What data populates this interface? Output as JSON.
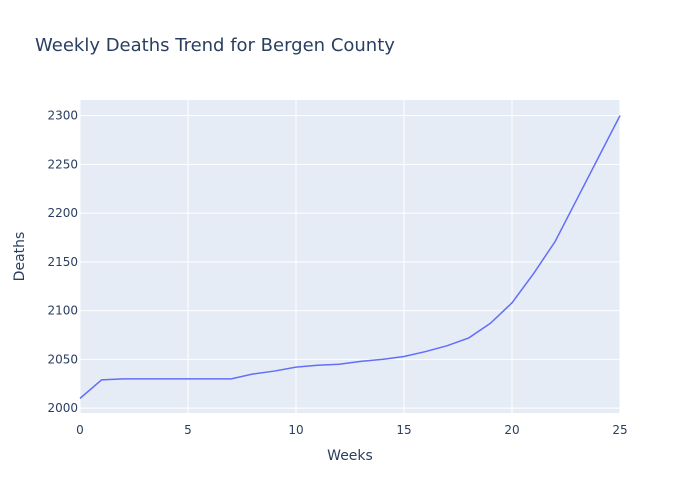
{
  "chart_data": {
    "type": "line",
    "title": "Weekly Deaths Trend for Bergen County",
    "xlabel": "Weeks",
    "ylabel": "Deaths",
    "xlim": [
      0,
      25
    ],
    "ylim": [
      1995,
      2316
    ],
    "x_ticks": [
      0,
      5,
      10,
      15,
      20,
      25
    ],
    "y_ticks": [
      2000,
      2050,
      2100,
      2150,
      2200,
      2250,
      2300
    ],
    "grid": true,
    "series": [
      {
        "color": "#636efa",
        "x": [
          0,
          1,
          2,
          3,
          4,
          5,
          6,
          7,
          8,
          9,
          10,
          11,
          12,
          13,
          14,
          15,
          16,
          17,
          18,
          19,
          20,
          21,
          22,
          23,
          24,
          25
        ],
        "y": [
          2010,
          2029,
          2030,
          2030,
          2030,
          2030,
          2030,
          2030,
          2035,
          2038,
          2042,
          2044,
          2045,
          2048,
          2050,
          2053,
          2058,
          2064,
          2072,
          2087,
          2108,
          2138,
          2171,
          2214,
          2257,
          2300
        ]
      }
    ]
  },
  "colors": {
    "plot_bg": "#e5ecf6",
    "grid": "#ffffff",
    "text": "#2a3f5f",
    "line": "#636efa"
  }
}
